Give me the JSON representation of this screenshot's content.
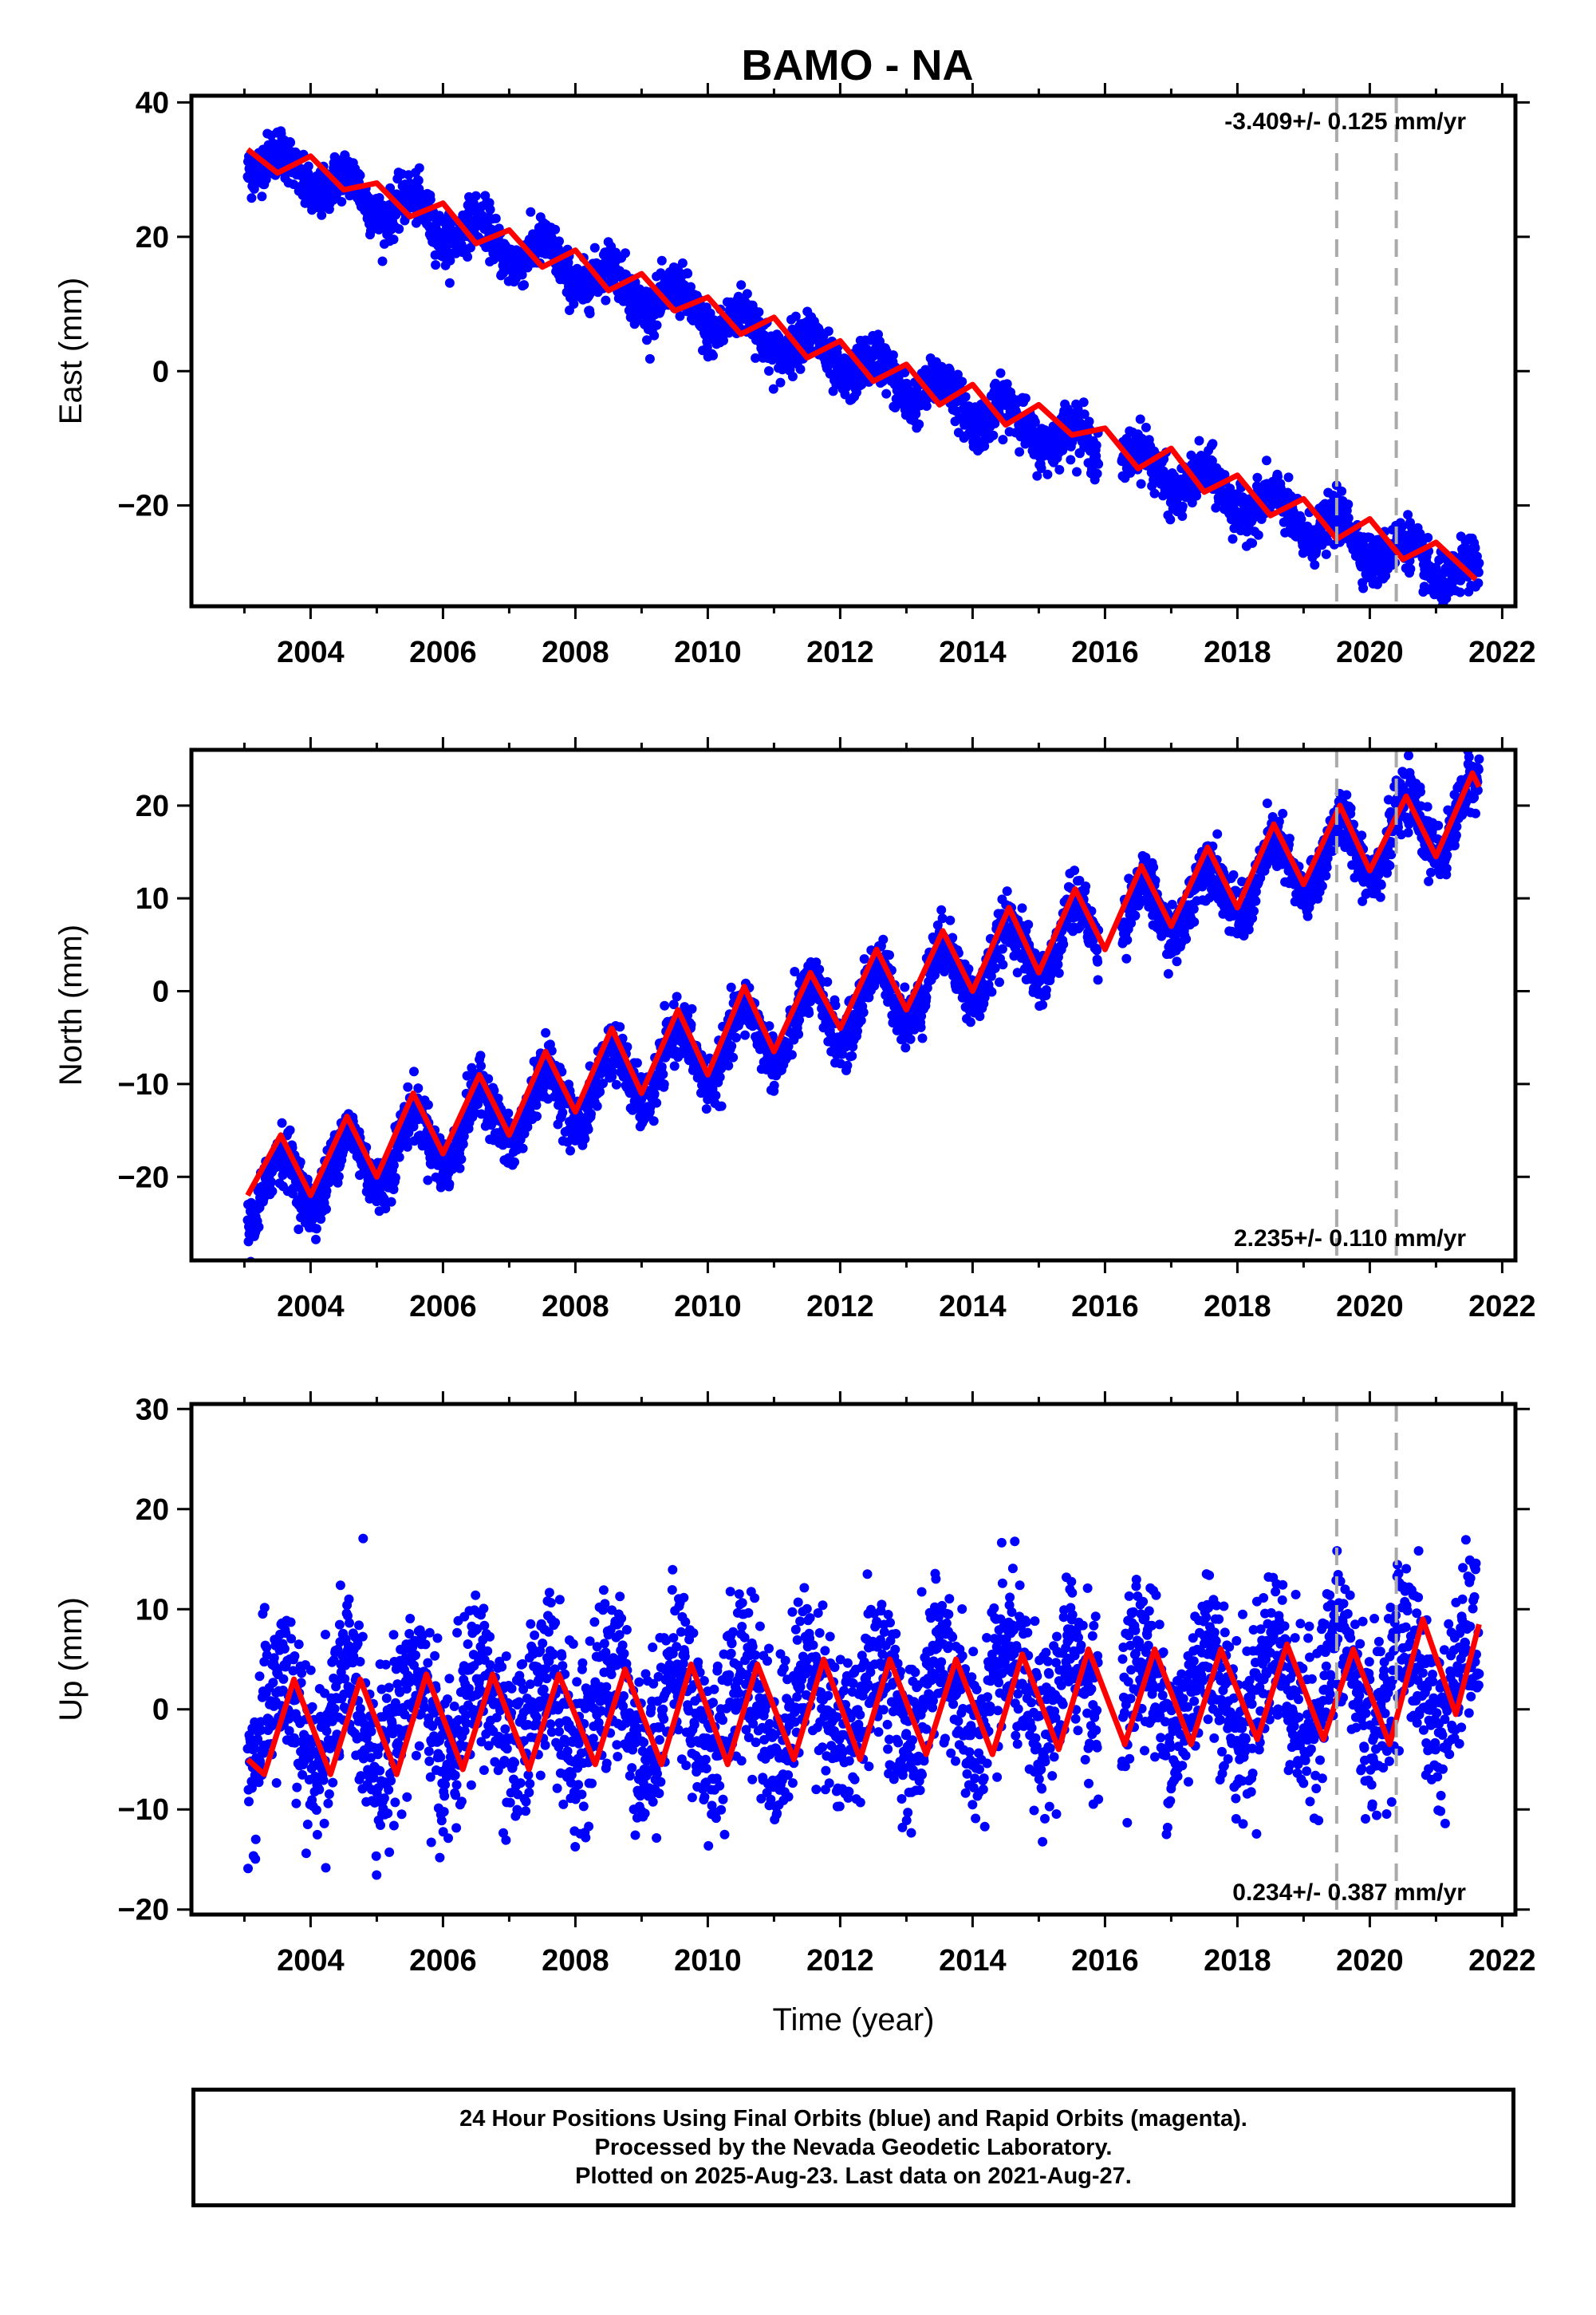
{
  "title": "BAMO - NA",
  "chart_data": [
    {
      "type": "scatter",
      "component": "east",
      "ylabel": "East (mm)",
      "xlabel": "",
      "xlim": [
        2002.2,
        2022.2
      ],
      "ylim": [
        -35,
        41
      ],
      "xticks": [
        2004,
        2006,
        2008,
        2010,
        2012,
        2014,
        2016,
        2018,
        2020,
        2022
      ],
      "yticks": [
        -20,
        0,
        20,
        40
      ],
      "rate_text": "-3.409+/- 0.125 mm/yr",
      "rate_position": "top-right",
      "series": [
        {
          "color": "#0000ff",
          "style": "points",
          "x_start": 2003.05,
          "x_end": 2021.65,
          "trend": {
            "value_at_start": 32.0,
            "slope": -3.409
          },
          "annual_amplitude": 2.5,
          "scatter": 1.8
        },
        {
          "color": "#ff0000",
          "style": "fit-line",
          "x": [
            2003.05,
            2003.5,
            2004.0,
            2004.5,
            2005.0,
            2005.5,
            2006.0,
            2006.5,
            2007.0,
            2007.5,
            2008.0,
            2008.5,
            2009.0,
            2009.5,
            2010.0,
            2010.5,
            2011.0,
            2011.5,
            2012.0,
            2012.5,
            2013.0,
            2013.5,
            2014.0,
            2014.5,
            2015.0,
            2015.5,
            2016.0,
            2016.5,
            2017.0,
            2017.5,
            2018.0,
            2018.5,
            2019.0,
            2019.5,
            2020.0,
            2020.5,
            2021.0,
            2021.6
          ],
          "y": [
            33,
            29.5,
            32,
            27,
            28,
            23,
            25,
            19,
            21,
            15.5,
            18,
            12,
            14.5,
            9,
            11,
            5.5,
            8,
            2,
            4.5,
            -1.5,
            1,
            -5,
            -2,
            -8,
            -5,
            -9.5,
            -8.5,
            -14.5,
            -11.5,
            -18,
            -15.5,
            -21.5,
            -19,
            -25,
            -22,
            -28,
            -25.5,
            -31
          ]
        }
      ],
      "offset_markers_x": [
        2019.5,
        2020.4
      ]
    },
    {
      "type": "scatter",
      "component": "north",
      "ylabel": "North (mm)",
      "xlabel": "",
      "xlim": [
        2002.2,
        2022.2
      ],
      "ylim": [
        -29,
        26
      ],
      "xticks": [
        2004,
        2006,
        2008,
        2010,
        2012,
        2014,
        2016,
        2018,
        2020,
        2022
      ],
      "yticks": [
        -20,
        -10,
        0,
        10,
        20
      ],
      "rate_text": "2.235+/- 0.110 mm/yr",
      "rate_position": "bottom-right",
      "series": [
        {
          "color": "#0000ff",
          "style": "points",
          "x_start": 2003.05,
          "x_end": 2021.65,
          "trend": {
            "value_at_start": -22.0,
            "slope": 2.235
          },
          "annual_amplitude": 3.5,
          "scatter": 1.5
        },
        {
          "color": "#ff0000",
          "style": "fit-line",
          "x": [
            2003.05,
            2003.55,
            2004.0,
            2004.55,
            2005.0,
            2005.55,
            2006.0,
            2006.55,
            2007.0,
            2007.55,
            2008.0,
            2008.55,
            2009.0,
            2009.55,
            2010.0,
            2010.55,
            2011.0,
            2011.55,
            2012.0,
            2012.55,
            2013.0,
            2013.55,
            2014.0,
            2014.55,
            2015.0,
            2015.55,
            2016.0,
            2016.55,
            2017.0,
            2017.55,
            2018.0,
            2018.55,
            2019.0,
            2019.55,
            2020.0,
            2020.55,
            2021.0,
            2021.55,
            2021.65
          ],
          "y": [
            -22,
            -15.5,
            -22,
            -13.5,
            -20,
            -11,
            -17.5,
            -9,
            -15.5,
            -6.5,
            -13,
            -4,
            -11,
            -2,
            -9,
            0.5,
            -6.5,
            2,
            -4,
            4.5,
            -2,
            6.5,
            0,
            9,
            2,
            11,
            4.5,
            13.5,
            7,
            15.5,
            9,
            18,
            11.5,
            20,
            13,
            21,
            14.5,
            23.5,
            22
          ]
        }
      ],
      "offset_markers_x": [
        2019.5,
        2020.4
      ]
    },
    {
      "type": "scatter",
      "component": "up",
      "ylabel": "Up (mm)",
      "xlabel": "Time (year)",
      "xlim": [
        2002.2,
        2022.2
      ],
      "ylim": [
        -20.5,
        30.5
      ],
      "xticks": [
        2004,
        2006,
        2008,
        2010,
        2012,
        2014,
        2016,
        2018,
        2020,
        2022
      ],
      "yticks": [
        -20,
        -10,
        0,
        10,
        20,
        30
      ],
      "rate_text": "0.234+/- 0.387 mm/yr",
      "rate_position": "bottom-right",
      "series": [
        {
          "color": "#0000ff",
          "style": "points",
          "x_start": 2003.05,
          "x_end": 2021.65,
          "trend": {
            "value_at_start": -1.5,
            "slope": 0.234
          },
          "annual_amplitude": 4.5,
          "scatter": 4.2
        },
        {
          "color": "#ff0000",
          "style": "fit-line",
          "x": [
            2003.05,
            2003.3,
            2003.75,
            2004.3,
            2004.75,
            2005.3,
            2005.75,
            2006.3,
            2006.75,
            2007.3,
            2007.75,
            2008.3,
            2008.75,
            2009.3,
            2009.75,
            2010.3,
            2010.75,
            2011.3,
            2011.75,
            2012.3,
            2012.75,
            2013.3,
            2013.75,
            2014.3,
            2014.75,
            2015.3,
            2015.75,
            2016.3,
            2016.75,
            2017.3,
            2017.75,
            2018.3,
            2018.75,
            2019.3,
            2019.75,
            2020.3,
            2020.8,
            2021.3,
            2021.65
          ],
          "y": [
            -5,
            -6.5,
            3,
            -6.5,
            3,
            -6.5,
            3.5,
            -6,
            3.5,
            -6,
            3.5,
            -5.5,
            4,
            -5.5,
            4.5,
            -5.5,
            4.5,
            -5,
            5,
            -5,
            5,
            -4.5,
            5,
            -4.5,
            5.5,
            -4,
            6,
            -3.5,
            6,
            -3.5,
            6,
            -3,
            6.5,
            -3,
            6,
            -3.5,
            9,
            -0.5,
            8.5
          ]
        }
      ],
      "offset_markers_x": [
        2019.5,
        2020.4
      ]
    }
  ],
  "footer": {
    "line1": "24 Hour Positions Using Final Orbits (blue) and Rapid Orbits (magenta).",
    "line2": "Processed by the Nevada Geodetic Laboratory.",
    "line3": "Plotted on 2025-Aug-23. Last data on 2021-Aug-27."
  }
}
